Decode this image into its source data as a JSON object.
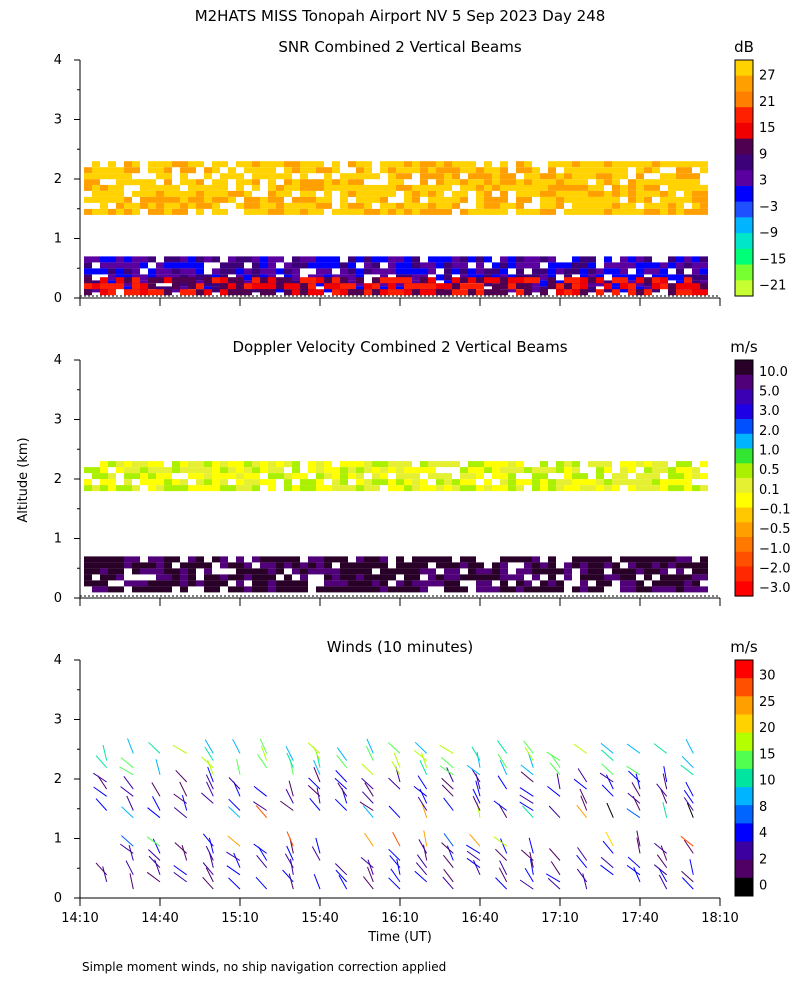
{
  "main_title": "M2HATS MISS Tonopah Airport NV   5 Sep 2023 Day 248",
  "y_axis_label": "Altitude (km)",
  "x_axis_label": "Time (UT)",
  "footnote": "Simple moment winds, no ship navigation correction applied",
  "chart_data": [
    {
      "type": "heatmap",
      "title": "SNR Combined 2 Vertical Beams",
      "ylabel": "Altitude (km)",
      "ylim": [
        0,
        4
      ],
      "yticks": [
        "0",
        "1",
        "2",
        "3",
        "4"
      ],
      "xlim_hours_ut": [
        14.1667,
        18.1667
      ],
      "colorbar": {
        "unit": "dB",
        "ticks": [
          "27",
          "21",
          "15",
          "9",
          "3",
          "−3",
          "−9",
          "−15",
          "−21"
        ],
        "colors": [
          "#ffd200",
          "#ffa000",
          "#ff8000",
          "#ff2000",
          "#f00000",
          "#500050",
          "#3c0078",
          "#5a00a0",
          "#0000ff",
          "#1e50ff",
          "#00b4ff",
          "#00e6c8",
          "#00ff78",
          "#78ff32",
          "#c8ff32"
        ]
      },
      "layers": [
        {
          "name": "upper layer",
          "alt_km": [
            1.9,
            2.3
          ],
          "level": "-9"
        },
        {
          "name": "mid layer",
          "alt_km": [
            1.4,
            1.9
          ],
          "level": "-15"
        },
        {
          "name": "lower boundary layer",
          "alt_km": [
            0.1,
            0.7
          ],
          "level": "3"
        },
        {
          "name": "surface maximum",
          "alt_km": [
            0.1,
            0.35
          ],
          "level": "15"
        }
      ]
    },
    {
      "type": "heatmap",
      "title": "Doppler Velocity Combined 2 Vertical Beams",
      "ylabel": "Altitude (km)",
      "ylim": [
        0,
        4
      ],
      "yticks": [
        "0",
        "1",
        "2",
        "3",
        "4"
      ],
      "xlim_hours_ut": [
        14.1667,
        18.1667
      ],
      "colorbar": {
        "unit": "m/s",
        "ticks": [
          "10.0",
          "5.0",
          "3.0",
          "2.0",
          "1.0",
          "0.5",
          "0.1",
          "−0.1",
          "−0.5",
          "−1.0",
          "−2.0",
          "−3.0"
        ],
        "colors": [
          "#280028",
          "#500078",
          "#3c00b4",
          "#1e00e6",
          "#0050ff",
          "#00b4ff",
          "#32e632",
          "#aaf000",
          "#e6f032",
          "#ffff00",
          "#ffc800",
          "#ffa000",
          "#ff7800",
          "#ff5000",
          "#ff2800",
          "#ff0000"
        ]
      },
      "layers": [
        {
          "name": "upper layer",
          "alt_km": [
            1.8,
            2.3
          ],
          "level": "0.1"
        },
        {
          "name": "lower boundary layer",
          "alt_km": [
            0.1,
            0.7
          ],
          "level": "-0.5"
        }
      ]
    },
    {
      "type": "wind_barbs",
      "title": "Winds (10 minutes)",
      "ylabel": "Altitude (km)",
      "ylim": [
        0,
        4
      ],
      "yticks": [
        "0",
        "1",
        "2",
        "3",
        "4"
      ],
      "xlabel": "Time (UT)",
      "xticks": [
        "14:10",
        "14:40",
        "15:10",
        "15:40",
        "16:10",
        "16:40",
        "17:10",
        "17:40",
        "18:10"
      ],
      "profile_interval_min": 10,
      "colorbar": {
        "unit": "m/s",
        "ticks": [
          "30",
          "25",
          "20",
          "15",
          "10",
          "8",
          "4",
          "2",
          "0"
        ],
        "colors": [
          "#ff0000",
          "#ff5000",
          "#ffa000",
          "#ffd200",
          "#b4ff00",
          "#50ff50",
          "#00e6a0",
          "#00b4ff",
          "#0064ff",
          "#0000ff",
          "#3c00a0",
          "#500064",
          "#000000"
        ]
      }
    }
  ]
}
